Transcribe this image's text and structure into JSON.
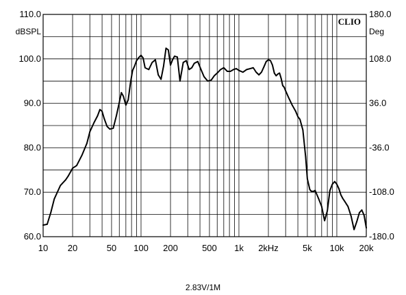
{
  "chart_data": {
    "type": "line",
    "brand": "CLIO",
    "title": "",
    "xlabel": "",
    "ylabel": "",
    "y_unit_left": "dBSPL",
    "y_unit_right": "Deg",
    "x_scale": "log",
    "xlim": [
      10,
      20000
    ],
    "ylim": [
      60,
      110
    ],
    "y2lim": [
      -180,
      180
    ],
    "grid": true,
    "x_tick_labels": [
      {
        "value": 10,
        "label": "10"
      },
      {
        "value": 20,
        "label": "20"
      },
      {
        "value": 50,
        "label": "50"
      },
      {
        "value": 100,
        "label": "100"
      },
      {
        "value": 200,
        "label": "200"
      },
      {
        "value": 500,
        "label": "500"
      },
      {
        "value": 1000,
        "label": "1k"
      },
      {
        "value": 2000,
        "label": "2kHz"
      },
      {
        "value": 5000,
        "label": "5k"
      },
      {
        "value": 10000,
        "label": "10k"
      },
      {
        "value": 20000,
        "label": "20k"
      }
    ],
    "y_tick_labels": [
      {
        "value": 110,
        "label": "110.0"
      },
      {
        "value": 100,
        "label": "100.0"
      },
      {
        "value": 90,
        "label": "90.0"
      },
      {
        "value": 80,
        "label": "80.0"
      },
      {
        "value": 70,
        "label": "70.0"
      },
      {
        "value": 60,
        "label": "60.0"
      }
    ],
    "y2_tick_labels": [
      {
        "value": 180,
        "label": "180.0"
      },
      {
        "value": 108,
        "label": "108.0"
      },
      {
        "value": 36,
        "label": "36.0"
      },
      {
        "value": -36,
        "label": "-36.0"
      },
      {
        "value": -108,
        "label": "-108.0"
      },
      {
        "value": -180,
        "label": "-180.0"
      }
    ],
    "series": [
      {
        "x": [
          10,
          11,
          12,
          13,
          15,
          17,
          18,
          20,
          22,
          25,
          28,
          30,
          33,
          36,
          38,
          40,
          42,
          45,
          48,
          52,
          56,
          60,
          63,
          66,
          70,
          74,
          78,
          82,
          86,
          90,
          95,
          100,
          105,
          110,
          120,
          130,
          140,
          150,
          160,
          170,
          180,
          190,
          200,
          210,
          220,
          235,
          250,
          270,
          290,
          310,
          330,
          350,
          380,
          410,
          440,
          480,
          520,
          560,
          600,
          650,
          700,
          760,
          820,
          880,
          940,
          1000,
          1100,
          1200,
          1300,
          1400,
          1500,
          1600,
          1700,
          1800,
          1900,
          2000,
          2100,
          2200,
          2300,
          2400,
          2500,
          2600,
          2700,
          2800,
          2900,
          3000,
          3200,
          3500,
          3800,
          4000,
          4200,
          4500,
          4800,
          5000,
          5300,
          5500,
          5800,
          6000,
          6500,
          7000,
          7500,
          8000,
          8500,
          9000,
          9500,
          10000,
          10500,
          11000,
          11500,
          12000,
          13000,
          14000,
          15000,
          16000,
          17000,
          18000,
          19000,
          20000
        ],
        "y": [
          62.6,
          62.8,
          65.5,
          68.5,
          71.5,
          72.8,
          73.6,
          75.4,
          76.0,
          78.4,
          81.0,
          83.6,
          85.6,
          87.2,
          88.6,
          88.2,
          86.6,
          84.8,
          84.2,
          84.4,
          87.2,
          90.2,
          92.4,
          91.6,
          89.6,
          90.8,
          94.6,
          97.4,
          98.4,
          99.6,
          100.3,
          100.8,
          100.2,
          98.0,
          97.6,
          99.2,
          99.8,
          96.4,
          95.4,
          98.4,
          102.4,
          102.0,
          98.6,
          99.8,
          100.6,
          100.4,
          95.0,
          99.2,
          99.6,
          97.6,
          98.0,
          99.0,
          99.4,
          97.6,
          96.0,
          95.0,
          95.2,
          96.2,
          96.8,
          97.6,
          98.0,
          97.2,
          97.2,
          97.6,
          97.8,
          97.4,
          97.0,
          97.6,
          97.8,
          98.0,
          97.0,
          96.4,
          97.0,
          98.2,
          99.4,
          99.8,
          99.6,
          98.6,
          96.8,
          96.2,
          96.6,
          96.8,
          95.6,
          94.0,
          93.6,
          92.8,
          91.4,
          89.6,
          88.2,
          87.0,
          86.4,
          84.0,
          78.0,
          73.0,
          70.6,
          70.2,
          70.2,
          70.4,
          68.6,
          66.8,
          63.6,
          65.8,
          70.4,
          71.8,
          72.4,
          71.8,
          70.8,
          69.4,
          68.6,
          68.0,
          66.8,
          64.6,
          61.6,
          63.4,
          65.4,
          66.0,
          64.8,
          62.0
        ]
      }
    ],
    "caption": "2.83V/1M"
  }
}
